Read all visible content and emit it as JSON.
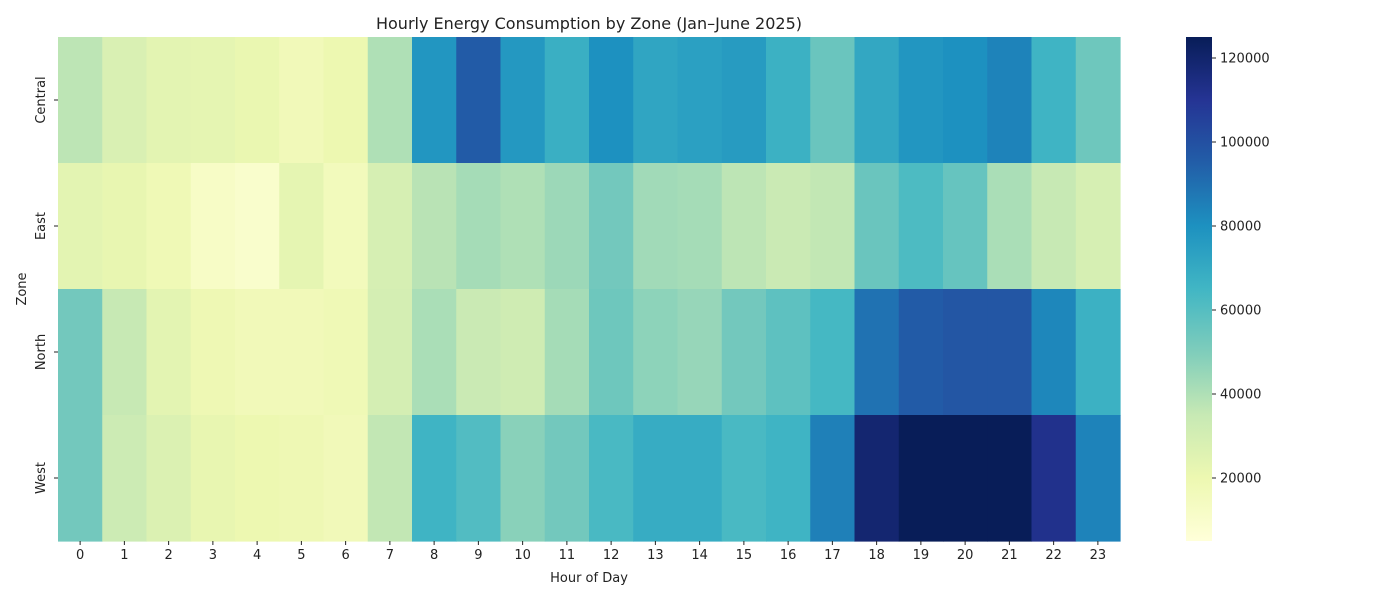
{
  "chart_data": {
    "type": "heatmap",
    "title": "Hourly Energy Consumption by Zone (Jan–June 2025)",
    "xlabel": "Hour of Day",
    "ylabel": "Zone",
    "x_categories": [
      "0",
      "1",
      "2",
      "3",
      "4",
      "5",
      "6",
      "7",
      "8",
      "9",
      "10",
      "11",
      "12",
      "13",
      "14",
      "15",
      "16",
      "17",
      "18",
      "19",
      "20",
      "21",
      "22",
      "23"
    ],
    "y_categories": [
      "Central",
      "East",
      "North",
      "West"
    ],
    "values": [
      [
        37000,
        28000,
        24000,
        23000,
        21000,
        17000,
        20000,
        40000,
        78000,
        96000,
        77000,
        68000,
        80000,
        72000,
        74000,
        76000,
        67000,
        55000,
        71000,
        78000,
        80000,
        84000,
        66000,
        54000
      ],
      [
        24000,
        22000,
        18000,
        12000,
        10000,
        23000,
        16000,
        29000,
        38000,
        42000,
        40000,
        44000,
        53000,
        43000,
        42000,
        37000,
        34000,
        36000,
        55000,
        62000,
        56000,
        41000,
        35000,
        29000
      ],
      [
        53000,
        35000,
        24000,
        19000,
        17000,
        17000,
        18000,
        30000,
        41000,
        34000,
        32000,
        42000,
        54000,
        47000,
        45000,
        53000,
        58000,
        64000,
        89000,
        96000,
        98000,
        98000,
        83000,
        67000
      ],
      [
        53000,
        33000,
        27000,
        22000,
        20000,
        19000,
        17000,
        36000,
        66000,
        61000,
        48000,
        53000,
        63000,
        69000,
        69000,
        63000,
        66000,
        85000,
        119000,
        125000,
        125000,
        125000,
        112000,
        84000
      ]
    ],
    "colorbar": {
      "min": 5000,
      "max": 125000,
      "ticks": [
        20000,
        40000,
        60000,
        80000,
        100000,
        120000
      ]
    },
    "colormap": [
      "#ffffd9",
      "#edf8b1",
      "#c7e9b4",
      "#7fcdbb",
      "#41b6c4",
      "#1d91c0",
      "#225ea8",
      "#253494",
      "#081d58"
    ]
  }
}
